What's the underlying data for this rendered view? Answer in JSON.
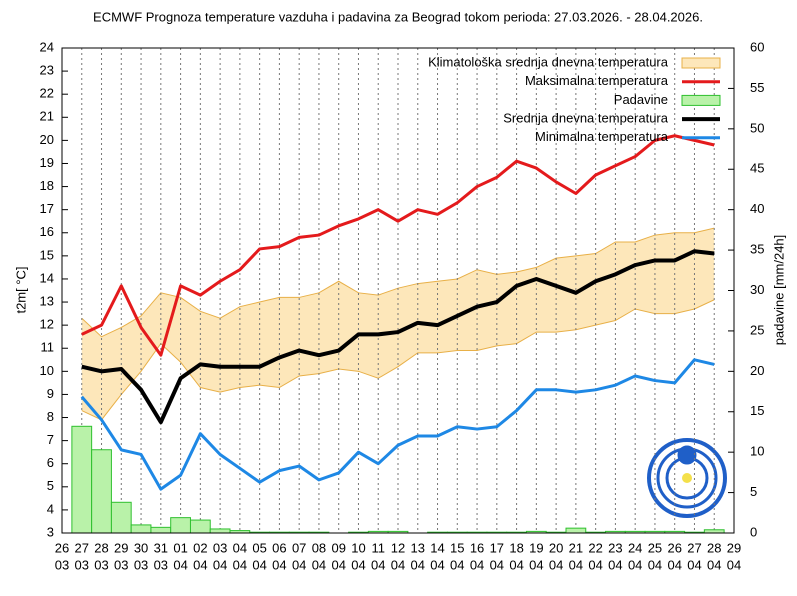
{
  "chart_data": {
    "type": "line",
    "title": "ECMWF Prognoza temperature vazduha i padavina za Beograd tokom perioda: 27.03.2026. - 28.04.2026.",
    "ylabel": "t2m[ °C]",
    "y2label": "padavine [mm/24h]",
    "categories": [
      [
        "26",
        "03"
      ],
      [
        "27",
        "03"
      ],
      [
        "28",
        "03"
      ],
      [
        "29",
        "03"
      ],
      [
        "30",
        "03"
      ],
      [
        "31",
        "03"
      ],
      [
        "01",
        "04"
      ],
      [
        "02",
        "04"
      ],
      [
        "03",
        "04"
      ],
      [
        "04",
        "04"
      ],
      [
        "05",
        "04"
      ],
      [
        "06",
        "04"
      ],
      [
        "07",
        "04"
      ],
      [
        "08",
        "04"
      ],
      [
        "09",
        "04"
      ],
      [
        "10",
        "04"
      ],
      [
        "11",
        "04"
      ],
      [
        "12",
        "04"
      ],
      [
        "13",
        "04"
      ],
      [
        "14",
        "04"
      ],
      [
        "15",
        "04"
      ],
      [
        "16",
        "04"
      ],
      [
        "17",
        "04"
      ],
      [
        "18",
        "04"
      ],
      [
        "19",
        "04"
      ],
      [
        "20",
        "04"
      ],
      [
        "21",
        "04"
      ],
      [
        "22",
        "04"
      ],
      [
        "23",
        "04"
      ],
      [
        "24",
        "04"
      ],
      [
        "25",
        "04"
      ],
      [
        "26",
        "04"
      ],
      [
        "27",
        "04"
      ],
      [
        "28",
        "04"
      ],
      [
        "29",
        "04"
      ]
    ],
    "ylim": [
      3,
      24
    ],
    "yticks": [
      3,
      4,
      5,
      6,
      7,
      8,
      9,
      10,
      11,
      12,
      13,
      14,
      15,
      16,
      17,
      18,
      19,
      20,
      21,
      22,
      23,
      24
    ],
    "y2lim": [
      0,
      60
    ],
    "y2ticks": [
      0,
      5,
      10,
      15,
      20,
      25,
      30,
      35,
      40,
      45,
      50,
      55,
      60
    ],
    "xgrid": true,
    "legend": "upper right",
    "series": [
      {
        "name": "Klimatološka srednja dnevna temperatura",
        "type": "band",
        "color": "#fde7ba",
        "edge_color": "#e8b048",
        "lower": [
          null,
          8.3,
          7.9,
          9.0,
          10.0,
          11.2,
          10.4,
          9.3,
          9.1,
          9.3,
          9.4,
          9.3,
          9.8,
          9.9,
          10.1,
          10.0,
          9.7,
          10.2,
          10.8,
          10.8,
          10.9,
          10.9,
          11.1,
          11.2,
          11.7,
          11.7,
          11.8,
          12.0,
          12.2,
          12.7,
          12.5,
          12.5,
          12.7,
          13.1,
          null
        ],
        "upper": [
          null,
          12.3,
          11.5,
          11.9,
          12.4,
          13.4,
          13.2,
          12.6,
          12.3,
          12.8,
          13.0,
          13.2,
          13.2,
          13.4,
          13.9,
          13.4,
          13.3,
          13.6,
          13.8,
          13.9,
          14.0,
          14.4,
          14.2,
          14.3,
          14.5,
          14.9,
          15.0,
          15.1,
          15.6,
          15.6,
          15.9,
          16.0,
          16.0,
          16.2,
          null
        ]
      },
      {
        "name": "Maksimalna temperatura",
        "type": "line",
        "color": "#e41a1c",
        "width": 3,
        "values": [
          null,
          11.6,
          12.0,
          13.7,
          11.9,
          10.7,
          13.7,
          13.3,
          13.9,
          14.4,
          15.3,
          15.4,
          15.8,
          15.9,
          16.3,
          16.6,
          17.0,
          16.5,
          17.0,
          16.8,
          17.3,
          18.0,
          18.4,
          19.1,
          18.8,
          18.2,
          17.7,
          18.5,
          18.9,
          19.3,
          20.0,
          20.2,
          20.0,
          19.8,
          null
        ]
      },
      {
        "name": "Padavine",
        "type": "bar",
        "axis": "y2",
        "color": "#b9f2a9",
        "edge_color": "#2ec02e",
        "values": [
          null,
          13.2,
          10.3,
          3.8,
          1.0,
          0.7,
          1.9,
          1.6,
          0.5,
          0.3,
          0.1,
          0.1,
          0.1,
          0.1,
          0.0,
          0.1,
          0.2,
          0.2,
          0.0,
          0.1,
          0.1,
          0.1,
          0.1,
          0.1,
          0.2,
          0.1,
          0.6,
          0.1,
          0.2,
          0.2,
          0.2,
          0.2,
          0.1,
          0.4,
          null
        ]
      },
      {
        "name": "Srednja dnevna temperatura",
        "type": "line",
        "color": "#000000",
        "width": 4,
        "values": [
          null,
          10.2,
          10.0,
          10.1,
          9.2,
          7.8,
          9.7,
          10.3,
          10.2,
          10.2,
          10.2,
          10.6,
          10.9,
          10.7,
          10.9,
          11.6,
          11.6,
          11.7,
          12.1,
          12.0,
          12.4,
          12.8,
          13.0,
          13.7,
          14.0,
          13.7,
          13.4,
          13.9,
          14.2,
          14.6,
          14.8,
          14.8,
          15.2,
          15.1,
          null
        ]
      },
      {
        "name": "Minimalna temperatura",
        "type": "line",
        "color": "#1e88e5",
        "width": 3,
        "values": [
          null,
          8.9,
          7.9,
          6.6,
          6.4,
          4.9,
          5.5,
          7.3,
          6.4,
          5.8,
          5.2,
          5.7,
          5.9,
          5.3,
          5.6,
          6.5,
          6.0,
          6.8,
          7.2,
          7.2,
          7.6,
          7.5,
          7.6,
          8.3,
          9.2,
          9.2,
          9.1,
          9.2,
          9.4,
          9.8,
          9.6,
          9.5,
          10.5,
          10.3,
          null
        ]
      }
    ]
  }
}
